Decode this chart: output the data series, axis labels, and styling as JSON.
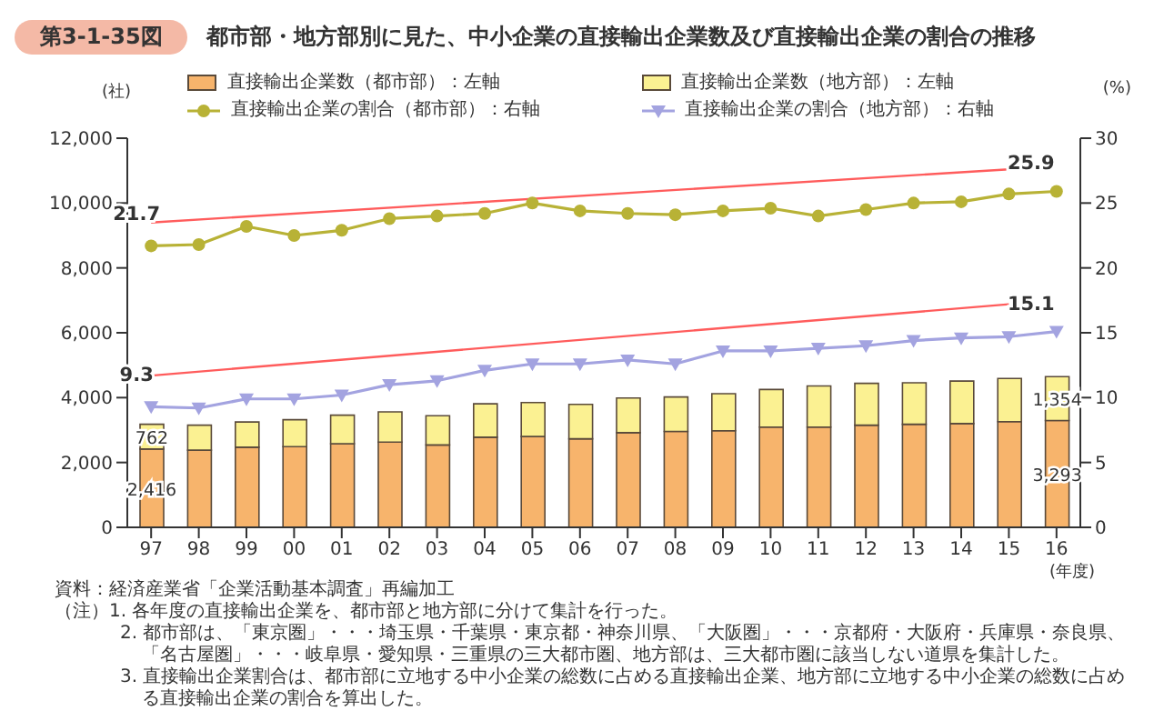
{
  "chart_data": {
    "type": "bar",
    "title": "第3-1-35図",
    "subtitle": "都市部・地方部別に見た、中小企業の直接輸出企業数及び直接輸出企業の割合の推移",
    "ylabel": "(社)",
    "y2label": "(%)",
    "xlabel": "(年度)",
    "categories": [
      "97",
      "98",
      "99",
      "00",
      "01",
      "02",
      "03",
      "04",
      "05",
      "06",
      "07",
      "08",
      "09",
      "10",
      "11",
      "12",
      "13",
      "14",
      "15",
      "16"
    ],
    "stacked": true,
    "legend": "top",
    "ylim": [
      0,
      12000
    ],
    "yticks": [
      0,
      {
        "value": 2000,
        "label": "2,000"
      },
      {
        "value": 4000,
        "label": "4,000"
      },
      {
        "value": 6000,
        "label": "6,000"
      },
      {
        "value": 8000,
        "label": "8,000"
      },
      {
        "value": 10000,
        "label": "10,000"
      },
      {
        "value": 12000,
        "label": "12,000"
      }
    ],
    "y2lim": [
      0,
      30
    ],
    "y2ticks": [
      0,
      5,
      10,
      15,
      20,
      25,
      30
    ],
    "series": [
      {
        "name": "直接輸出企業数（都市部）：左軸",
        "color": "#f7b46c",
        "values": [
          2416,
          2380,
          2470,
          2490,
          2580,
          2630,
          2540,
          2780,
          2800,
          2730,
          2920,
          2960,
          2980,
          3090,
          3090,
          3150,
          3180,
          3200,
          3260,
          3293
        ],
        "value_labels": [
          "2,416",
          null,
          null,
          null,
          null,
          null,
          null,
          null,
          null,
          null,
          null,
          null,
          null,
          null,
          null,
          null,
          null,
          null,
          null,
          "3,293"
        ]
      },
      {
        "name": "直接輸出企業数（地方部）：左軸",
        "color": "#fbf192",
        "values": [
          762,
          770,
          780,
          830,
          880,
          930,
          900,
          1030,
          1050,
          1060,
          1070,
          1060,
          1140,
          1160,
          1270,
          1290,
          1280,
          1310,
          1330,
          1354
        ],
        "value_labels": [
          "762",
          null,
          null,
          null,
          null,
          null,
          null,
          null,
          null,
          null,
          null,
          null,
          null,
          null,
          null,
          null,
          null,
          null,
          null,
          "1,354"
        ]
      },
      {
        "name": "直接輸出企業の割合（都市部）：右軸",
        "type": "line",
        "axis": "y2",
        "marker": "circle",
        "color": "#b8b236",
        "values": [
          21.7,
          21.8,
          23.2,
          22.5,
          22.9,
          23.8,
          24.0,
          24.2,
          25.0,
          24.4,
          24.2,
          24.1,
          24.4,
          24.6,
          24.0,
          24.5,
          25.0,
          25.1,
          25.7,
          25.9
        ],
        "value_labels": [
          "21.7",
          null,
          null,
          null,
          null,
          null,
          null,
          null,
          null,
          null,
          null,
          null,
          null,
          null,
          null,
          null,
          null,
          null,
          null,
          "25.9"
        ]
      },
      {
        "name": "直接輸出企業の割合（地方部）：右軸",
        "type": "line",
        "axis": "y2",
        "marker": "triangle",
        "color": "#a3a3e0",
        "values": [
          9.3,
          9.2,
          9.9,
          9.9,
          10.2,
          11.0,
          11.3,
          12.1,
          12.6,
          12.6,
          12.9,
          12.6,
          13.6,
          13.6,
          13.8,
          14.0,
          14.4,
          14.6,
          14.7,
          15.1
        ],
        "value_labels": [
          "9.3",
          null,
          null,
          null,
          null,
          null,
          null,
          null,
          null,
          null,
          null,
          null,
          null,
          null,
          null,
          null,
          null,
          null,
          null,
          "15.1"
        ]
      },
      {
        "type": "line",
        "axis": "y2",
        "marker": "none",
        "color": "#ff5c5c",
        "values": [
          23.5,
          null,
          null,
          null,
          null,
          null,
          null,
          null,
          null,
          null,
          null,
          null,
          null,
          null,
          null,
          null,
          null,
          null,
          27.6,
          null
        ]
      },
      {
        "type": "line",
        "axis": "y2",
        "marker": "none",
        "color": "#ff5c5c",
        "values": [
          11.7,
          null,
          null,
          null,
          null,
          null,
          null,
          null,
          null,
          null,
          null,
          null,
          null,
          null,
          null,
          null,
          null,
          null,
          17.2,
          null
        ]
      }
    ],
    "annotations": [
      "資料：経済産業省「企業活動基本調査」再編加工",
      "（注）1. 各年度の直接輸出企業を、都市部と地方部に分けて集計を行った。",
      "2. 都市部は、「東京圏」・・・埼玉県・千葉県・東京都・神奈川県、「大阪圏」・・・京都府・大阪府・兵庫県・奈良県、「名古屋圏」・・・岐阜県・愛知県・三重県の三大都市圏、地方部は、三大都市圏に該当しない道県を集計した。",
      "3. 直接輸出企業割合は、都市部に立地する中小企業の総数に占める直接輸出企業、地方部に立地する中小企業の総数に占める直接輸出企業の割合を算出した。"
    ]
  }
}
